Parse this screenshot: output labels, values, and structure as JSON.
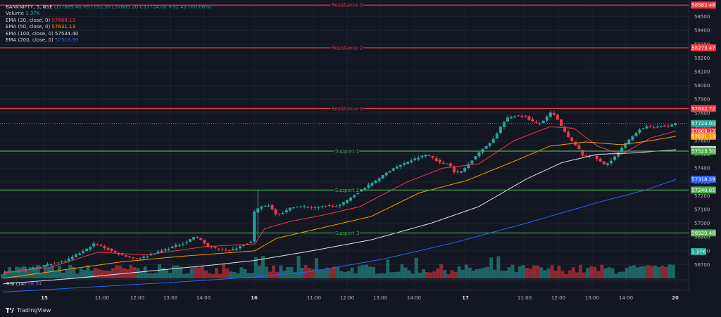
{
  "header": {
    "symbol": "BANKNIFTY, 5, NSE",
    "ohlc": [
      {
        "k": "O",
        "v": "57689.40"
      },
      {
        "k": "H",
        "v": "57751.30"
      },
      {
        "k": "L",
        "v": "57685.20"
      },
      {
        "k": "C",
        "v": "57724.00"
      }
    ],
    "change": "+32.45 (+0.06%)",
    "change_color": "#26a69a"
  },
  "indicators": [
    {
      "label": "Volume",
      "value": "1.37K",
      "color": "#26a69a"
    },
    {
      "label": "EMA (20, close, 0)",
      "value": "57669.13",
      "color": "#f23645"
    },
    {
      "label": "EMA (50, close, 0)",
      "value": "57631.13",
      "color": "#ff9800"
    },
    {
      "label": "EMA (100, close, 0)",
      "value": "57534.40",
      "color": "#e0e3eb"
    },
    {
      "label": "EMA (200, close, 0)",
      "value": "57318.59",
      "color": "#2962ff"
    }
  ],
  "rsi": {
    "label": "RSI (14)",
    "value": "58.04",
    "color": "#7e57c2"
  },
  "brand": "TradingView",
  "colors": {
    "up": "#26a69a",
    "down": "#f23645",
    "resistance": "#f23645",
    "support": "#4caf50",
    "grid": "#1e222d",
    "axis_text": "#b2b5be"
  },
  "chart_data": {
    "type": "candlestick",
    "ylim": [
      56600,
      58600
    ],
    "y_ticks": [
      56700,
      56800,
      56900,
      57000,
      57100,
      57200,
      57300,
      57400,
      57500,
      57600,
      57700,
      57800,
      57900,
      58000,
      58100,
      58200,
      58300,
      58400,
      58500
    ],
    "x_ticks": [
      "15",
      "11:00",
      "12:00",
      "13:00",
      "14:00",
      "16",
      "11:00",
      "12:00",
      "13:00",
      "14:00",
      "17",
      "11:00",
      "12:00",
      "13:00",
      "14:00",
      "20"
    ],
    "levels": [
      {
        "name": "Resistance 3",
        "value": 58583.48,
        "kind": "resistance"
      },
      {
        "name": "Resistance 2",
        "value": 58273.47,
        "kind": "resistance"
      },
      {
        "name": "Resistance 1",
        "value": 57832.72,
        "kind": "resistance"
      },
      {
        "name": "Support 1",
        "value": 57523.5,
        "kind": "support"
      },
      {
        "name": "Support 2",
        "value": 57240.85,
        "kind": "support"
      },
      {
        "name": "Support 3",
        "value": 56929.48,
        "kind": "support"
      }
    ],
    "price_labels": [
      {
        "text": "58583.48",
        "value": 58583.48,
        "color": "#f23645"
      },
      {
        "text": "58273.47",
        "value": 58273.47,
        "color": "#f23645"
      },
      {
        "text": "57832.72",
        "value": 57832.72,
        "color": "#f23645"
      },
      {
        "text": "57724.00",
        "value": 57724.0,
        "color": "#26a69a"
      },
      {
        "text": "57669.13",
        "value": 57669.13,
        "color": "#f23645"
      },
      {
        "text": "57631.13",
        "value": 57631.13,
        "color": "#ff9800"
      },
      {
        "text": "57534.40",
        "value": 57534.4,
        "color": "#e0e3eb"
      },
      {
        "text": "57523.50",
        "value": 57523.5,
        "color": "#4caf50"
      },
      {
        "text": "57318.59",
        "value": 57318.59,
        "color": "#2962ff"
      },
      {
        "text": "57240.85",
        "value": 57240.85,
        "color": "#4caf50"
      },
      {
        "text": "56929.48",
        "value": 56929.48,
        "color": "#4caf50"
      }
    ],
    "volume_label": {
      "text": "1.37K",
      "color": "#26a69a"
    },
    "close_anchors": [
      [
        0,
        56640
      ],
      [
        20,
        56660
      ],
      [
        40,
        56700
      ],
      [
        55,
        56730
      ],
      [
        70,
        56800
      ],
      [
        78,
        56850
      ],
      [
        85,
        56830
      ],
      [
        95,
        56790
      ],
      [
        105,
        56760
      ],
      [
        115,
        56740
      ],
      [
        125,
        56770
      ],
      [
        135,
        56800
      ],
      [
        145,
        56830
      ],
      [
        155,
        56860
      ],
      [
        162,
        56900
      ],
      [
        168,
        56880
      ],
      [
        174,
        56830
      ],
      [
        180,
        56820
      ],
      [
        186,
        56810
      ],
      [
        192,
        56800
      ],
      [
        198,
        56820
      ],
      [
        205,
        56850
      ],
      [
        212,
        56870
      ],
      [
        213,
        57080
      ],
      [
        218,
        57120
      ],
      [
        225,
        57130
      ],
      [
        232,
        57060
      ],
      [
        238,
        57080
      ],
      [
        245,
        57120
      ],
      [
        255,
        57120
      ],
      [
        265,
        57110
      ],
      [
        275,
        57130
      ],
      [
        283,
        57120
      ],
      [
        290,
        57160
      ],
      [
        300,
        57230
      ],
      [
        310,
        57280
      ],
      [
        320,
        57340
      ],
      [
        330,
        57400
      ],
      [
        338,
        57430
      ],
      [
        346,
        57460
      ],
      [
        352,
        57480
      ],
      [
        358,
        57500
      ],
      [
        364,
        57470
      ],
      [
        370,
        57430
      ],
      [
        376,
        57440
      ],
      [
        382,
        57360
      ],
      [
        388,
        57380
      ],
      [
        394,
        57440
      ],
      [
        400,
        57500
      ],
      [
        408,
        57560
      ],
      [
        415,
        57620
      ],
      [
        420,
        57700
      ],
      [
        425,
        57760
      ],
      [
        432,
        57780
      ],
      [
        440,
        57780
      ],
      [
        446,
        57740
      ],
      [
        452,
        57720
      ],
      [
        458,
        57760
      ],
      [
        462,
        57800
      ],
      [
        466,
        57780
      ],
      [
        470,
        57720
      ],
      [
        474,
        57660
      ],
      [
        478,
        57610
      ],
      [
        484,
        57560
      ],
      [
        490,
        57480
      ],
      [
        496,
        57500
      ],
      [
        502,
        57460
      ],
      [
        508,
        57420
      ],
      [
        512,
        57450
      ],
      [
        518,
        57500
      ],
      [
        524,
        57570
      ],
      [
        530,
        57620
      ],
      [
        536,
        57680
      ],
      [
        542,
        57700
      ],
      [
        548,
        57690
      ],
      [
        554,
        57710
      ],
      [
        560,
        57700
      ],
      [
        566,
        57724
      ]
    ],
    "ema_anchors": [
      {
        "name": "EMA 20",
        "color": "#f23645",
        "pts": [
          [
            0,
            56640
          ],
          [
            40,
            56680
          ],
          [
            80,
            56790
          ],
          [
            120,
            56770
          ],
          [
            170,
            56830
          ],
          [
            212,
            56850
          ],
          [
            220,
            56960
          ],
          [
            240,
            57010
          ],
          [
            270,
            57060
          ],
          [
            300,
            57120
          ],
          [
            340,
            57300
          ],
          [
            370,
            57400
          ],
          [
            400,
            57430
          ],
          [
            430,
            57600
          ],
          [
            460,
            57700
          ],
          [
            480,
            57690
          ],
          [
            500,
            57560
          ],
          [
            520,
            57500
          ],
          [
            545,
            57620
          ],
          [
            566,
            57669
          ]
        ]
      },
      {
        "name": "EMA 50",
        "color": "#ff9800",
        "pts": [
          [
            0,
            56600
          ],
          [
            50,
            56660
          ],
          [
            100,
            56720
          ],
          [
            150,
            56760
          ],
          [
            212,
            56800
          ],
          [
            230,
            56890
          ],
          [
            270,
            56970
          ],
          [
            310,
            57050
          ],
          [
            350,
            57220
          ],
          [
            390,
            57310
          ],
          [
            430,
            57450
          ],
          [
            460,
            57560
          ],
          [
            490,
            57590
          ],
          [
            520,
            57570
          ],
          [
            545,
            57600
          ],
          [
            566,
            57631
          ]
        ]
      },
      {
        "name": "EMA 100",
        "color": "#e0e3eb",
        "pts": [
          [
            0,
            56560
          ],
          [
            60,
            56600
          ],
          [
            120,
            56650
          ],
          [
            180,
            56700
          ],
          [
            212,
            56730
          ],
          [
            260,
            56800
          ],
          [
            310,
            56880
          ],
          [
            360,
            57000
          ],
          [
            400,
            57120
          ],
          [
            440,
            57320
          ],
          [
            470,
            57440
          ],
          [
            500,
            57500
          ],
          [
            530,
            57510
          ],
          [
            566,
            57534
          ]
        ]
      },
      {
        "name": "EMA 200",
        "color": "#2962ff",
        "pts": [
          [
            0,
            56500
          ],
          [
            80,
            56540
          ],
          [
            160,
            56580
          ],
          [
            212,
            56610
          ],
          [
            260,
            56650
          ],
          [
            320,
            56740
          ],
          [
            380,
            56860
          ],
          [
            440,
            57000
          ],
          [
            500,
            57150
          ],
          [
            540,
            57240
          ],
          [
            566,
            57318
          ]
        ]
      }
    ]
  }
}
